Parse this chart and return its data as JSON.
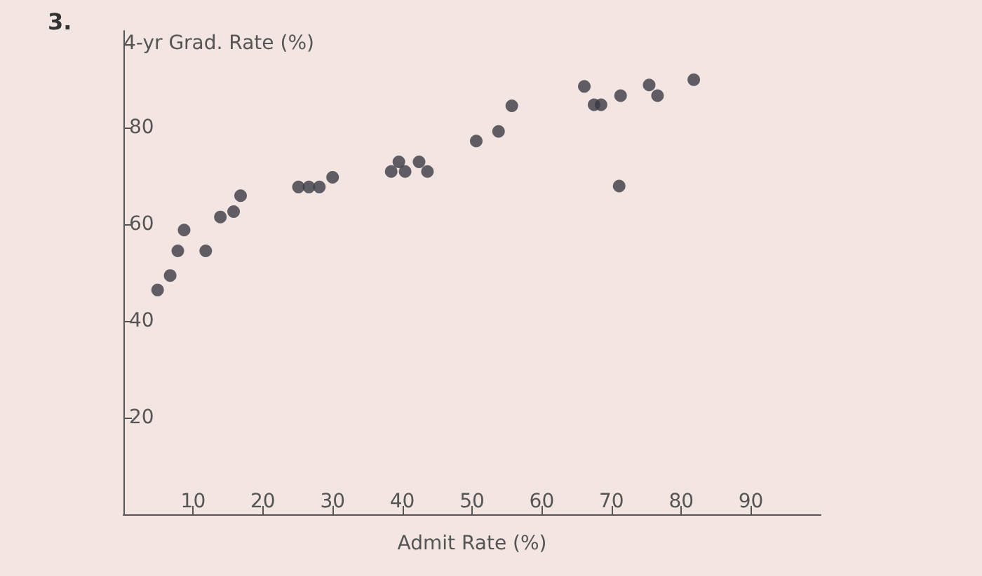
{
  "chart_data": {
    "type": "scatter",
    "annotations": [
      "3."
    ],
    "xlabel": "Admit Rate (%)",
    "ylabel": "4-yr Grad. Rate (%)",
    "x": [
      4.9,
      6.7,
      7.8,
      8.7,
      11.8,
      13.9,
      15.8,
      16.8,
      25.1,
      26.6,
      28.1,
      30.0,
      38.4,
      39.5,
      40.4,
      42.4,
      43.6,
      50.6,
      53.8,
      55.7,
      66.1,
      67.5,
      68.5,
      71.3,
      75.4,
      76.6,
      81.8,
      71.1
    ],
    "values": [
      46.4,
      49.4,
      54.5,
      58.8,
      54.5,
      61.5,
      62.6,
      65.9,
      67.7,
      67.7,
      67.7,
      69.7,
      70.9,
      72.9,
      70.9,
      72.9,
      70.9,
      77.2,
      79.2,
      84.5,
      88.5,
      84.7,
      84.7,
      86.6,
      88.8,
      86.6,
      89.9,
      67.9
    ],
    "color": "#3a3b44",
    "marker": "circle",
    "grid": false,
    "xlim": [
      0,
      100
    ],
    "ylim": [
      0,
      100
    ],
    "xticks": [
      10,
      20,
      30,
      40,
      50,
      60,
      70,
      80,
      90
    ],
    "yticks": [
      20,
      40,
      60,
      80
    ]
  }
}
